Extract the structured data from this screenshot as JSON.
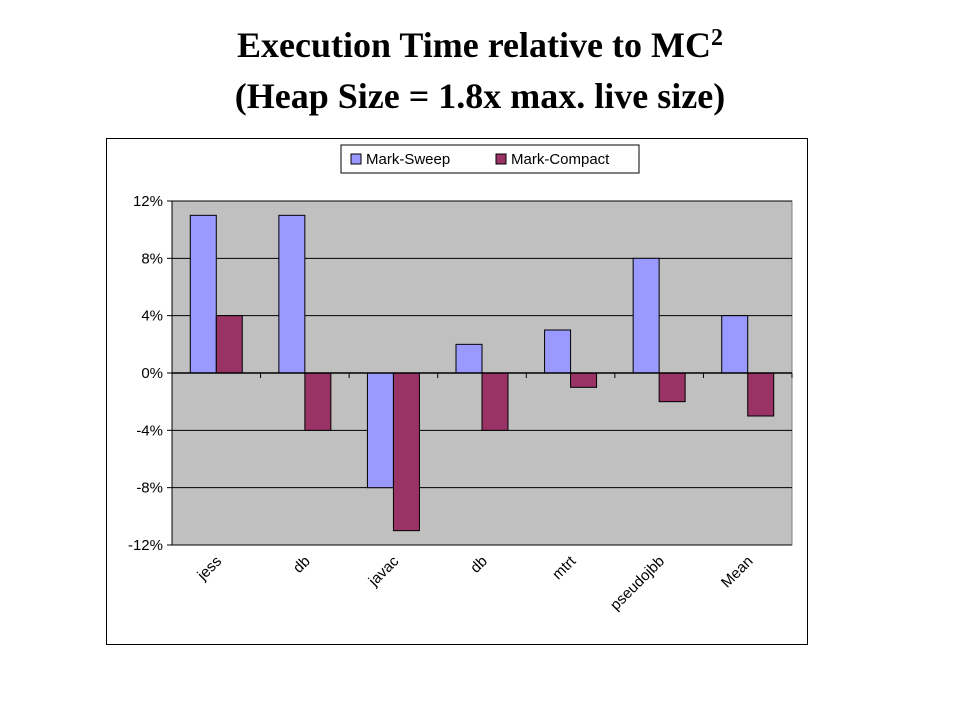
{
  "title": {
    "line1_text": "Execution Time relative to MC",
    "line1_superscript": "2",
    "line2_text": "(Heap Size = 1.8x max. live size)"
  },
  "chart_data": {
    "type": "bar",
    "categories": [
      "jess",
      "db",
      "javac",
      "db",
      "mtrt",
      "pseudojbb",
      "Mean"
    ],
    "series": [
      {
        "name": "Mark-Sweep",
        "color": "#9999FF",
        "values": [
          11,
          11,
          -8,
          2,
          3,
          8,
          4
        ]
      },
      {
        "name": "Mark-Compact",
        "color": "#993366",
        "values": [
          4,
          -4,
          -11,
          -4,
          -1,
          -2,
          -3
        ]
      }
    ],
    "unit": "%",
    "ylim": [
      -12,
      12
    ],
    "yticks": [
      12,
      8,
      4,
      0,
      -4,
      -8,
      -12
    ],
    "ytick_labels": [
      "12%",
      "8%",
      "4%",
      "0%",
      "-4%",
      "-8%",
      "-12%"
    ],
    "plot_background": "#C0C0C0",
    "grid": true,
    "legend_position": "top"
  }
}
